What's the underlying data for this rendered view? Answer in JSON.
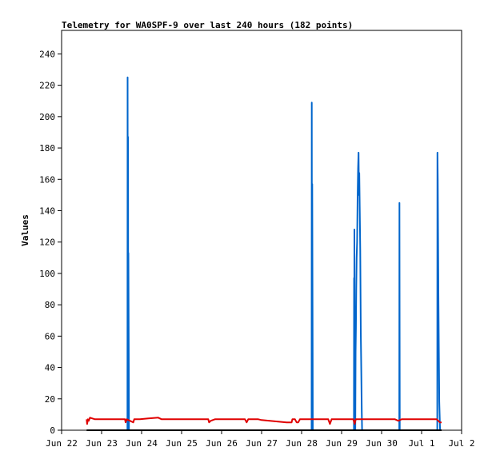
{
  "chart_data": {
    "type": "line",
    "title": "Telemetry for WA0SPF-9 over last 240 hours (182 points)",
    "xlabel": "",
    "ylabel": "Values",
    "xlim": [
      0,
      240
    ],
    "ylim": [
      0,
      255
    ],
    "x_ticks": [
      {
        "label": "Jun 22",
        "x": 0
      },
      {
        "label": "Jun 23",
        "x": 24
      },
      {
        "label": "Jun 24",
        "x": 48
      },
      {
        "label": "Jun 25",
        "x": 72
      },
      {
        "label": "Jun 26",
        "x": 96
      },
      {
        "label": "Jun 27",
        "x": 120
      },
      {
        "label": "Jun 28",
        "x": 144
      },
      {
        "label": "Jun 29",
        "x": 168
      },
      {
        "label": "Jun 30",
        "x": 192
      },
      {
        "label": "Jul 1",
        "x": 216
      },
      {
        "label": "Jul 2",
        "x": 240
      }
    ],
    "y_ticks": [
      0,
      20,
      40,
      60,
      80,
      100,
      120,
      140,
      160,
      180,
      200,
      220,
      240
    ],
    "grid": false,
    "series": [
      {
        "color": "#0066cc",
        "points": [
          [
            39.5,
            0
          ],
          [
            39.6,
            225
          ],
          [
            39.8,
            0
          ],
          [
            39.9,
            187
          ],
          [
            40.0,
            0
          ],
          [
            40.1,
            113
          ],
          [
            40.3,
            38
          ],
          [
            40.4,
            0
          ],
          [
            150.0,
            0
          ],
          [
            150.1,
            209
          ],
          [
            150.3,
            0
          ],
          [
            150.4,
            157
          ],
          [
            150.6,
            52
          ],
          [
            150.7,
            0
          ],
          [
            175.4,
            0
          ],
          [
            175.5,
            97
          ],
          [
            175.6,
            0
          ],
          [
            175.7,
            128
          ],
          [
            175.8,
            0
          ],
          [
            176.0,
            33
          ],
          [
            176.2,
            0
          ],
          [
            176.4,
            50
          ],
          [
            176.6,
            65
          ],
          [
            176.8,
            90
          ],
          [
            177.0,
            110
          ],
          [
            177.3,
            120
          ],
          [
            177.6,
            148
          ],
          [
            177.9,
            167
          ],
          [
            178.2,
            177
          ],
          [
            178.4,
            150
          ],
          [
            178.6,
            164
          ],
          [
            178.9,
            140
          ],
          [
            179.2,
            115
          ],
          [
            179.5,
            62
          ],
          [
            179.8,
            38
          ],
          [
            180.1,
            12
          ],
          [
            180.3,
            0
          ],
          [
            202.6,
            0
          ],
          [
            202.7,
            145
          ],
          [
            202.9,
            0
          ],
          [
            225.4,
            0
          ],
          [
            225.5,
            177
          ],
          [
            225.7,
            160
          ],
          [
            225.9,
            124
          ],
          [
            226.1,
            88
          ],
          [
            226.3,
            54
          ],
          [
            226.6,
            18
          ],
          [
            226.9,
            7
          ],
          [
            227.1,
            0
          ]
        ]
      },
      {
        "color": "#e00000",
        "points": [
          [
            15,
            7
          ],
          [
            15.3,
            4
          ],
          [
            15.8,
            7
          ],
          [
            16.3,
            6
          ],
          [
            17,
            8
          ],
          [
            20,
            7
          ],
          [
            25,
            7
          ],
          [
            30,
            7
          ],
          [
            35,
            7
          ],
          [
            38,
            7
          ],
          [
            38.4,
            5
          ],
          [
            39,
            7
          ],
          [
            41,
            6
          ],
          [
            43,
            5
          ],
          [
            43.6,
            7
          ],
          [
            47,
            7
          ],
          [
            52,
            7.5
          ],
          [
            58,
            8
          ],
          [
            60,
            7
          ],
          [
            65,
            7
          ],
          [
            70,
            7
          ],
          [
            75,
            7
          ],
          [
            80,
            7
          ],
          [
            88,
            7
          ],
          [
            88.5,
            5
          ],
          [
            89.5,
            6
          ],
          [
            92,
            7
          ],
          [
            100,
            7
          ],
          [
            105,
            7
          ],
          [
            110,
            7
          ],
          [
            111,
            5
          ],
          [
            112,
            7
          ],
          [
            118,
            7
          ],
          [
            120,
            6.5
          ],
          [
            125,
            6
          ],
          [
            130,
            5.5
          ],
          [
            135,
            5
          ],
          [
            138,
            5
          ],
          [
            138.5,
            7
          ],
          [
            140,
            7
          ],
          [
            141,
            5
          ],
          [
            142,
            5
          ],
          [
            143,
            7
          ],
          [
            149,
            7
          ],
          [
            150.8,
            7
          ],
          [
            155,
            7
          ],
          [
            160,
            7
          ],
          [
            161,
            4
          ],
          [
            162,
            7
          ],
          [
            170,
            7
          ],
          [
            175,
            7
          ],
          [
            175.8,
            4
          ],
          [
            176.5,
            7
          ],
          [
            180,
            7
          ],
          [
            185,
            7
          ],
          [
            190,
            7
          ],
          [
            200,
            7
          ],
          [
            202,
            6
          ],
          [
            204,
            7
          ],
          [
            210,
            7
          ],
          [
            215,
            7
          ],
          [
            220,
            7
          ],
          [
            225,
            7
          ],
          [
            226,
            6
          ],
          [
            227,
            5
          ],
          [
            228,
            5
          ]
        ]
      },
      {
        "color": "#000000",
        "points": [
          [
            15,
            0
          ],
          [
            228,
            0
          ]
        ]
      }
    ]
  }
}
